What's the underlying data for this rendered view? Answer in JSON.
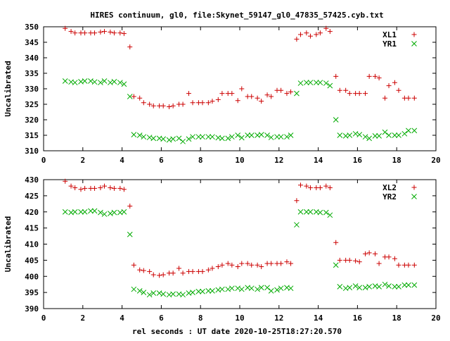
{
  "title": "HIRES continuum, gl0, file:Skynet_59147_gl0_47835_57425.cyb.txt",
  "xlabel": "rel seconds : UT date 2020-10-25T18:27:20.570",
  "chart_data": [
    {
      "type": "scatter",
      "ylabel": "Uncalibrated",
      "xlim": [
        0,
        20
      ],
      "ylim": [
        310,
        350
      ],
      "x_ticks": [
        "0",
        "2",
        "4",
        "6",
        "8",
        "10",
        "12",
        "14",
        "16",
        "18",
        "20"
      ],
      "y_ticks": [
        "310",
        "315",
        "320",
        "325",
        "330",
        "335",
        "340",
        "345",
        "350"
      ],
      "grid": false,
      "legend_position": "top-right",
      "series": [
        {
          "name": "XL1",
          "color": "#cc0000",
          "marker": "plus",
          "x": [
            1.1,
            1.4,
            1.6,
            1.9,
            2.1,
            2.4,
            2.6,
            2.9,
            3.1,
            3.4,
            3.6,
            3.9,
            4.1,
            4.4,
            4.6,
            4.9,
            5.1,
            5.4,
            5.6,
            5.9,
            6.1,
            6.4,
            6.6,
            6.9,
            7.1,
            7.4,
            7.6,
            7.9,
            8.1,
            8.4,
            8.6,
            8.9,
            9.1,
            9.4,
            9.6,
            9.9,
            10.1,
            10.4,
            10.6,
            10.9,
            11.1,
            11.4,
            11.6,
            11.9,
            12.1,
            12.4,
            12.6,
            12.9,
            13.1,
            13.4,
            13.6,
            13.9,
            14.1,
            14.4,
            14.6,
            14.9,
            15.1,
            15.4,
            15.6,
            15.9,
            16.1,
            16.4,
            16.6,
            16.9,
            17.1,
            17.4,
            17.6,
            17.9,
            18.1,
            18.4,
            18.6,
            18.9
          ],
          "y": [
            349.5,
            348.5,
            348,
            348,
            348,
            348,
            348,
            348.3,
            348.5,
            348.3,
            348,
            348,
            347.8,
            343.5,
            327.5,
            327,
            325.5,
            325,
            324.5,
            324.5,
            324.5,
            324.2,
            324.5,
            325,
            325,
            328.5,
            325.5,
            325.5,
            325.5,
            325.5,
            326,
            326.5,
            328.5,
            328.5,
            328.5,
            326.2,
            330,
            327.5,
            327.5,
            327,
            326,
            328,
            327.5,
            329.5,
            329.5,
            328.5,
            329,
            346,
            347.5,
            348,
            347,
            347.5,
            348,
            349.5,
            348.5,
            334,
            329.5,
            329.5,
            328.5,
            328.5,
            328.5,
            328.5,
            334,
            334,
            333.5,
            327,
            331,
            332,
            329.5,
            327,
            327,
            327
          ]
        },
        {
          "name": "YR1",
          "color": "#00aa00",
          "marker": "cross",
          "x": [
            1.1,
            1.4,
            1.6,
            1.9,
            2.1,
            2.4,
            2.6,
            2.9,
            3.1,
            3.4,
            3.6,
            3.9,
            4.1,
            4.4,
            4.6,
            4.9,
            5.1,
            5.4,
            5.6,
            5.9,
            6.1,
            6.4,
            6.6,
            6.9,
            7.1,
            7.4,
            7.6,
            7.9,
            8.1,
            8.4,
            8.6,
            8.9,
            9.1,
            9.4,
            9.6,
            9.9,
            10.1,
            10.4,
            10.6,
            10.9,
            11.1,
            11.4,
            11.6,
            11.9,
            12.1,
            12.4,
            12.6,
            12.9,
            13.1,
            13.4,
            13.6,
            13.9,
            14.1,
            14.4,
            14.6,
            14.9,
            15.1,
            15.4,
            15.6,
            15.9,
            16.1,
            16.4,
            16.6,
            16.9,
            17.1,
            17.4,
            17.6,
            17.9,
            18.1,
            18.4,
            18.6,
            18.9
          ],
          "y": [
            332.5,
            332.2,
            332,
            332.3,
            332.5,
            332.5,
            332.2,
            332,
            332.5,
            332,
            332.3,
            332,
            331.5,
            327.5,
            315.2,
            315,
            314.5,
            314.3,
            314,
            314,
            313.8,
            313.5,
            313.8,
            314,
            313,
            313.8,
            314.5,
            314.5,
            314.5,
            314.5,
            314.5,
            314.2,
            314,
            314,
            314.5,
            315,
            314.2,
            315,
            315,
            315,
            315.2,
            315,
            314.3,
            314.5,
            314.5,
            314.5,
            315,
            328.5,
            331.8,
            332,
            332,
            332,
            332,
            331.8,
            331,
            320,
            315,
            314.8,
            315,
            315.5,
            315.2,
            314.5,
            314,
            314.8,
            314.8,
            316,
            315,
            315,
            315,
            315.5,
            316.5,
            316.5
          ]
        }
      ]
    },
    {
      "type": "scatter",
      "ylabel": "Uncalibrated",
      "xlim": [
        0,
        20
      ],
      "ylim": [
        390,
        430
      ],
      "x_ticks": [
        "0",
        "2",
        "4",
        "6",
        "8",
        "10",
        "12",
        "14",
        "16",
        "18",
        "20"
      ],
      "y_ticks": [
        "390",
        "395",
        "400",
        "405",
        "410",
        "415",
        "420",
        "425",
        "430"
      ],
      "grid": false,
      "legend_position": "top-right",
      "series": [
        {
          "name": "XL2",
          "color": "#cc0000",
          "marker": "plus",
          "x": [
            1.1,
            1.4,
            1.6,
            1.9,
            2.1,
            2.4,
            2.6,
            2.9,
            3.1,
            3.4,
            3.6,
            3.9,
            4.1,
            4.4,
            4.6,
            4.9,
            5.1,
            5.4,
            5.6,
            5.9,
            6.1,
            6.4,
            6.6,
            6.9,
            7.1,
            7.4,
            7.6,
            7.9,
            8.1,
            8.4,
            8.6,
            8.9,
            9.1,
            9.4,
            9.6,
            9.9,
            10.1,
            10.4,
            10.6,
            10.9,
            11.1,
            11.4,
            11.6,
            11.9,
            12.1,
            12.4,
            12.6,
            12.9,
            13.1,
            13.4,
            13.6,
            13.9,
            14.1,
            14.4,
            14.6,
            14.9,
            15.1,
            15.4,
            15.6,
            15.9,
            16.1,
            16.4,
            16.6,
            16.9,
            17.1,
            17.4,
            17.6,
            17.9,
            18.1,
            18.4,
            18.6,
            18.9
          ],
          "y": [
            429.5,
            428,
            427.5,
            427,
            427.3,
            427.3,
            427.3,
            427.5,
            428,
            427.5,
            427.3,
            427.3,
            427,
            421.8,
            403.5,
            402,
            401.8,
            401.5,
            400.5,
            400.3,
            400.5,
            401,
            401,
            402.5,
            401,
            401.5,
            401.5,
            401.5,
            401.5,
            402,
            402.5,
            403,
            403.5,
            404,
            403.5,
            403,
            404,
            404,
            403.5,
            403.5,
            403,
            404,
            404,
            404,
            404,
            404.5,
            404,
            423.5,
            428.3,
            428,
            427.5,
            427.5,
            427.5,
            428,
            427.5,
            410.5,
            405,
            405,
            405,
            404.8,
            404.5,
            407,
            407.3,
            407,
            404,
            406,
            406,
            405.5,
            403.5,
            403.5,
            403.5,
            403.5
          ]
        },
        {
          "name": "YR2",
          "color": "#00aa00",
          "marker": "cross",
          "x": [
            1.1,
            1.4,
            1.6,
            1.9,
            2.1,
            2.4,
            2.6,
            2.9,
            3.1,
            3.4,
            3.6,
            3.9,
            4.1,
            4.4,
            4.6,
            4.9,
            5.1,
            5.4,
            5.6,
            5.9,
            6.1,
            6.4,
            6.6,
            6.9,
            7.1,
            7.4,
            7.6,
            7.9,
            8.1,
            8.4,
            8.6,
            8.9,
            9.1,
            9.4,
            9.6,
            9.9,
            10.1,
            10.4,
            10.6,
            10.9,
            11.1,
            11.4,
            11.6,
            11.9,
            12.1,
            12.4,
            12.6,
            12.9,
            13.1,
            13.4,
            13.6,
            13.9,
            14.1,
            14.4,
            14.6,
            14.9,
            15.1,
            15.4,
            15.6,
            15.9,
            16.1,
            16.4,
            16.6,
            16.9,
            17.1,
            17.4,
            17.6,
            17.9,
            18.1,
            18.4,
            18.6,
            18.9
          ],
          "y": [
            420,
            419.8,
            420,
            420,
            420,
            420.3,
            420.3,
            419.8,
            419.3,
            419.5,
            419.8,
            419.8,
            420,
            413,
            396,
            395.5,
            395,
            394.3,
            394.8,
            394.8,
            394.5,
            394.3,
            394.5,
            394.5,
            394.3,
            394.8,
            395,
            395.3,
            395.3,
            395.5,
            395.5,
            395.8,
            396,
            396,
            396.3,
            396.3,
            396,
            396.5,
            396.3,
            396,
            396.5,
            396.5,
            395.5,
            395.8,
            396.3,
            396.5,
            396.3,
            416,
            420,
            420,
            420,
            420,
            419.8,
            419.8,
            419,
            403.5,
            396.8,
            396.3,
            396.5,
            397,
            396.5,
            396.5,
            396.8,
            397,
            396.8,
            397.5,
            397,
            396.8,
            396.8,
            397.3,
            397.3,
            397.3
          ]
        }
      ]
    }
  ]
}
